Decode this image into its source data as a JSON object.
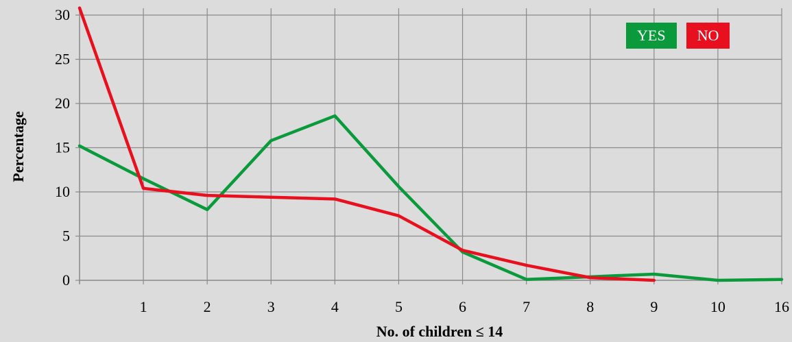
{
  "chart_data": {
    "type": "line",
    "categories": [
      "0",
      "1",
      "2",
      "3",
      "4",
      "5",
      "6",
      "7",
      "8",
      "9",
      "10",
      "16"
    ],
    "x_tick_labels": [
      "",
      "1",
      "2",
      "3",
      "4",
      "5",
      "6",
      "7",
      "8",
      "9",
      "10",
      "16"
    ],
    "series": [
      {
        "name": "YES",
        "color": "#0a9a3c",
        "values": [
          15.2,
          11.5,
          8.0,
          15.8,
          18.6,
          10.6,
          3.2,
          0.1,
          0.4,
          0.7,
          0.0,
          0.1
        ]
      },
      {
        "name": "NO",
        "color": "#e8101e",
        "values": [
          30.8,
          10.4,
          9.6,
          9.4,
          9.2,
          7.3,
          3.4,
          1.7,
          0.3,
          0.0,
          null,
          null
        ]
      }
    ],
    "ylim": [
      0,
      30.8
    ],
    "yticks": [
      0,
      5,
      10,
      15,
      20,
      25,
      30
    ],
    "xlabel": "No. of children ≤ 14",
    "ylabel": "Percentage",
    "grid": true,
    "legend_position": "top-right"
  }
}
